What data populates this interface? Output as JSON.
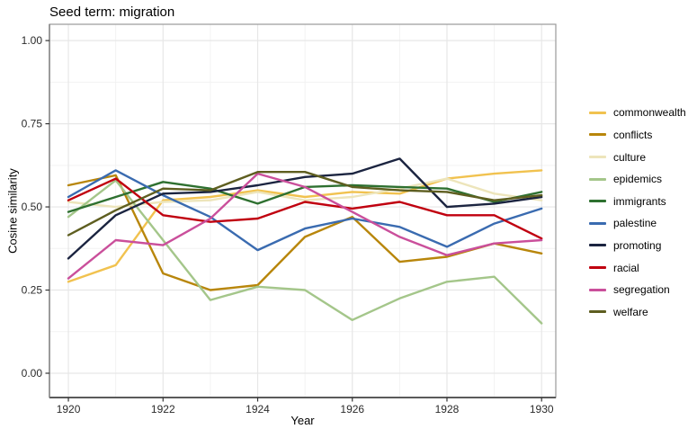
{
  "title": "Seed term: migration",
  "axes": {
    "x_label": "Year",
    "y_label": "Cosine similarity",
    "x_tick_labels": [
      "1920",
      "1922",
      "1924",
      "1926",
      "1928",
      "1930"
    ],
    "y_tick_labels": [
      "0.00",
      "0.25",
      "0.50",
      "0.75",
      "1.00"
    ]
  },
  "chart_data": {
    "type": "line",
    "title": "Seed term: migration",
    "xlabel": "Year",
    "ylabel": "Cosine similarity",
    "x": [
      1920,
      1921,
      1922,
      1923,
      1924,
      1925,
      1926,
      1927,
      1928,
      1929,
      1930
    ],
    "x_major_ticks": [
      1920,
      1922,
      1924,
      1926,
      1928,
      1930
    ],
    "x_minor_ticks": [
      1921,
      1923,
      1925,
      1927,
      1929
    ],
    "y_major_ticks": [
      0,
      0.25,
      0.5,
      0.75,
      1.0
    ],
    "y_minor_ticks": [
      0.125,
      0.375,
      0.625,
      0.875
    ],
    "xlim": [
      1919.6,
      1930.3
    ],
    "ylim": [
      -0.073,
      1.049
    ],
    "grid": "both",
    "legend_position": "right",
    "series": [
      {
        "name": "commonwealth",
        "color": "#F1C24F",
        "values": [
          0.275,
          0.325,
          0.52,
          0.53,
          0.55,
          0.53,
          0.545,
          0.54,
          0.585,
          0.6,
          0.61
        ]
      },
      {
        "name": "conflicts",
        "color": "#B8860B",
        "values": [
          0.565,
          0.595,
          0.3,
          0.25,
          0.265,
          0.41,
          0.47,
          0.335,
          0.35,
          0.39,
          0.36
        ]
      },
      {
        "name": "culture",
        "color": "#EDE5BB",
        "values": [
          0.515,
          0.5,
          0.515,
          0.52,
          0.545,
          0.52,
          0.53,
          0.555,
          0.585,
          0.54,
          0.52
        ]
      },
      {
        "name": "epidemics",
        "color": "#A4C68A",
        "values": [
          0.47,
          0.58,
          0.4,
          0.22,
          0.26,
          0.25,
          0.16,
          0.225,
          0.275,
          0.29,
          0.15
        ]
      },
      {
        "name": "immigrants",
        "color": "#2E7030",
        "values": [
          0.485,
          0.53,
          0.575,
          0.555,
          0.51,
          0.56,
          0.565,
          0.56,
          0.555,
          0.515,
          0.545
        ]
      },
      {
        "name": "palestine",
        "color": "#3A6BB0",
        "values": [
          0.53,
          0.61,
          0.535,
          0.47,
          0.37,
          0.435,
          0.465,
          0.44,
          0.38,
          0.45,
          0.495
        ]
      },
      {
        "name": "promoting",
        "color": "#1B2440",
        "values": [
          0.345,
          0.475,
          0.54,
          0.545,
          0.565,
          0.59,
          0.6,
          0.645,
          0.5,
          0.51,
          0.53
        ]
      },
      {
        "name": "racial",
        "color": "#C0000F",
        "values": [
          0.52,
          0.585,
          0.475,
          0.455,
          0.465,
          0.515,
          0.495,
          0.515,
          0.475,
          0.475,
          0.405
        ]
      },
      {
        "name": "segregation",
        "color": "#CA4F9B",
        "values": [
          0.285,
          0.4,
          0.385,
          0.465,
          0.6,
          0.56,
          0.485,
          0.41,
          0.355,
          0.39,
          0.4
        ]
      },
      {
        "name": "welfare",
        "color": "#5E5E20",
        "values": [
          0.415,
          0.49,
          0.555,
          0.55,
          0.605,
          0.605,
          0.56,
          0.55,
          0.545,
          0.52,
          0.535
        ]
      }
    ]
  }
}
